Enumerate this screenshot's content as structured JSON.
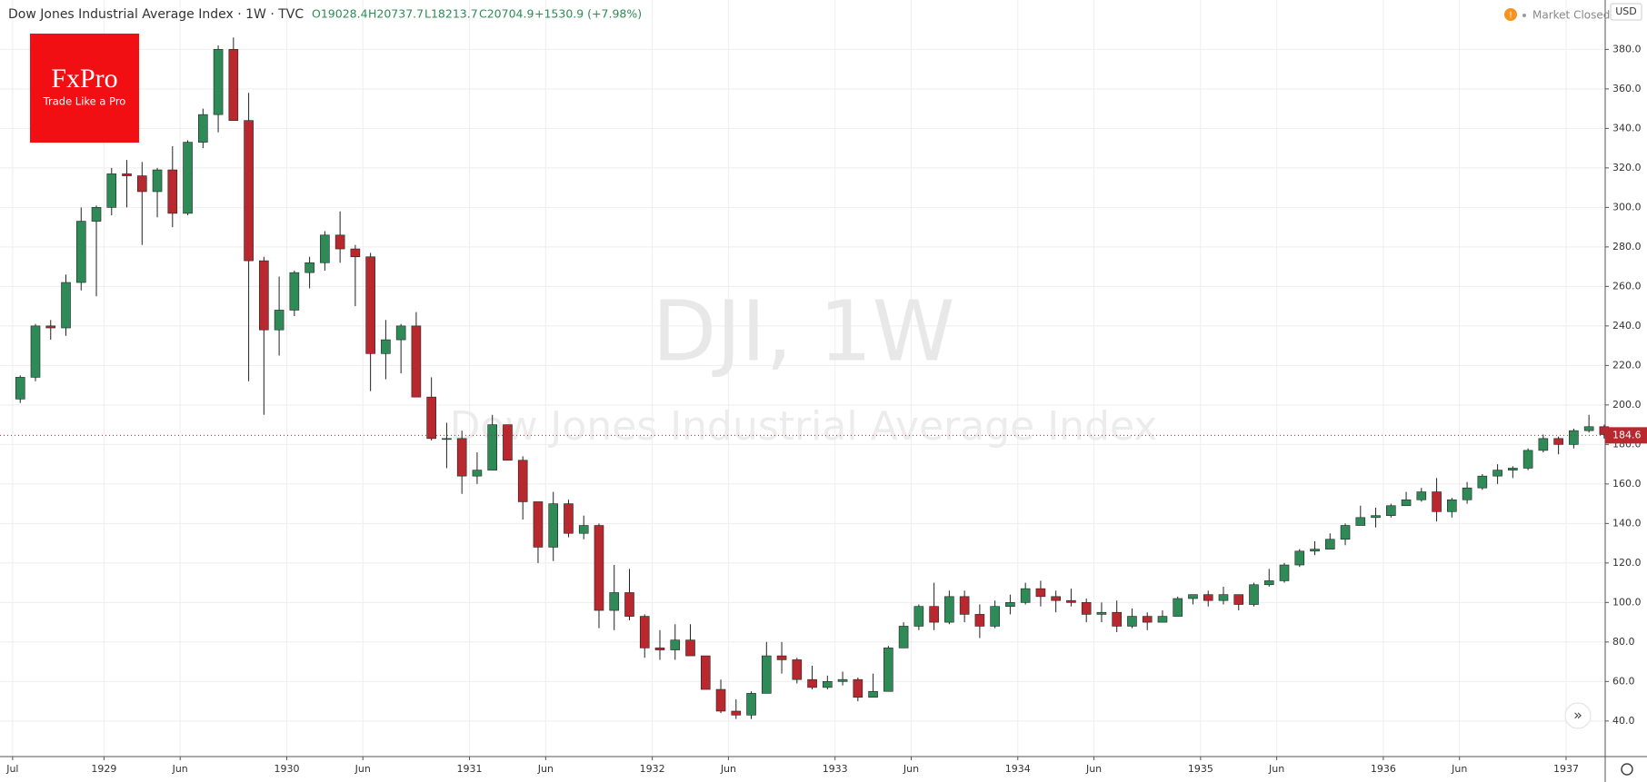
{
  "header": {
    "title": "Dow Jones Industrial Average Index · 1W · TVC",
    "open": "O19028.4",
    "high": "H20737.7",
    "low": "L18213.7",
    "close": "C20704.9",
    "change": "+1530.9 (+7.98%)",
    "status": "Market Closed",
    "currency": "USD"
  },
  "logo": {
    "name": "FxPro",
    "tagline": "Trade Like a Pro"
  },
  "watermark": {
    "symbol": "DJI, 1W",
    "description": "Dow Jones Industrial Average Index"
  },
  "chart_data": {
    "type": "candlestick",
    "up_color": "#2e8b57",
    "down_color": "#b8282e",
    "grid": true,
    "last_price": 184.6,
    "ylim": [
      22,
      405
    ],
    "yticks": [
      {
        "value": 40,
        "label": "40.0"
      },
      {
        "value": 60,
        "label": "60.0"
      },
      {
        "value": 80,
        "label": "80.0"
      },
      {
        "value": 100,
        "label": "100.0"
      },
      {
        "value": 120,
        "label": "120.0"
      },
      {
        "value": 140,
        "label": "140.0"
      },
      {
        "value": 160,
        "label": "160.0"
      },
      {
        "value": 180,
        "label": "180.0"
      },
      {
        "value": 200,
        "label": "200.0"
      },
      {
        "value": 220,
        "label": "220.0"
      },
      {
        "value": 240,
        "label": "240.0"
      },
      {
        "value": 260,
        "label": "260.0"
      },
      {
        "value": 280,
        "label": "280.0"
      },
      {
        "value": 300,
        "label": "300.0"
      },
      {
        "value": 320,
        "label": "320.0"
      },
      {
        "value": 340,
        "label": "340.0"
      },
      {
        "value": 360,
        "label": "360.0"
      },
      {
        "value": 380,
        "label": "380.0"
      }
    ],
    "xticks": [
      {
        "value": "1928-07",
        "label": "Jul"
      },
      {
        "value": "1929-01",
        "label": "1929"
      },
      {
        "value": "1929-06",
        "label": "Jun"
      },
      {
        "value": "1930-01",
        "label": "1930"
      },
      {
        "value": "1930-06",
        "label": "Jun"
      },
      {
        "value": "1931-01",
        "label": "1931"
      },
      {
        "value": "1931-06",
        "label": "Jun"
      },
      {
        "value": "1932-01",
        "label": "1932"
      },
      {
        "value": "1932-06",
        "label": "Jun"
      },
      {
        "value": "1933-01",
        "label": "1933"
      },
      {
        "value": "1933-06",
        "label": "Jun"
      },
      {
        "value": "1934-01",
        "label": "1934"
      },
      {
        "value": "1934-06",
        "label": "Jun"
      },
      {
        "value": "1935-01",
        "label": "1935"
      },
      {
        "value": "1935-06",
        "label": "Jun"
      },
      {
        "value": "1936-01",
        "label": "1936"
      },
      {
        "value": "1936-06",
        "label": "Jun"
      },
      {
        "value": "1937-01",
        "label": "1937"
      }
    ],
    "x": [
      "1928-07",
      "1928-08",
      "1928-09",
      "1928-10",
      "1928-11",
      "1928-12",
      "1929-01",
      "1929-02",
      "1929-03",
      "1929-04",
      "1929-05",
      "1929-06",
      "1929-07",
      "1929-08",
      "1929-09",
      "1929-10",
      "1929-11",
      "1929-12",
      "1930-01",
      "1930-02",
      "1930-03",
      "1930-04",
      "1930-05",
      "1930-06",
      "1930-07",
      "1930-08",
      "1930-09",
      "1930-10",
      "1930-11",
      "1930-12",
      "1931-01",
      "1931-02",
      "1931-03",
      "1931-04",
      "1931-05",
      "1931-06",
      "1931-07",
      "1931-08",
      "1931-09",
      "1931-10",
      "1931-11",
      "1931-12",
      "1932-01",
      "1932-02",
      "1932-03",
      "1932-04",
      "1932-05",
      "1932-06",
      "1932-07",
      "1932-08",
      "1932-09",
      "1932-10",
      "1932-11",
      "1932-12",
      "1933-01",
      "1933-02",
      "1933-03",
      "1933-04",
      "1933-05",
      "1933-06",
      "1933-07",
      "1933-08",
      "1933-09",
      "1933-10",
      "1933-11",
      "1933-12",
      "1934-01",
      "1934-02",
      "1934-03",
      "1934-04",
      "1934-05",
      "1934-06",
      "1934-07",
      "1934-08",
      "1934-09",
      "1934-10",
      "1934-11",
      "1934-12",
      "1935-01",
      "1935-02",
      "1935-03",
      "1935-04",
      "1935-05",
      "1935-06",
      "1935-07",
      "1935-08",
      "1935-09",
      "1935-10",
      "1935-11",
      "1935-12",
      "1936-01",
      "1936-02",
      "1936-03",
      "1936-04",
      "1936-05",
      "1936-06",
      "1936-07",
      "1936-08",
      "1936-09",
      "1936-10",
      "1936-11",
      "1936-12",
      "1937-01",
      "1937-02",
      "1937-03"
    ],
    "open": [
      203,
      214,
      240,
      239,
      262,
      293,
      300,
      317,
      316,
      308,
      319,
      297,
      333,
      347,
      380,
      344,
      273,
      238,
      248,
      267,
      272,
      286,
      279,
      275,
      226,
      233,
      240,
      204,
      183,
      183,
      164,
      167,
      190,
      172,
      151,
      128,
      150,
      135,
      139,
      96,
      105,
      93,
      77,
      76,
      81,
      73,
      56,
      45,
      43,
      54,
      73,
      71,
      61,
      57,
      60,
      61,
      52,
      55,
      77,
      88,
      98,
      90,
      103,
      94,
      88,
      98,
      100,
      107,
      103,
      101,
      100,
      94,
      95,
      88,
      93,
      90,
      93,
      102,
      104,
      101,
      104,
      99,
      109,
      111,
      119,
      126,
      127,
      132,
      139,
      143,
      144,
      149,
      152,
      156,
      146,
      152,
      158,
      164,
      167,
      168,
      177,
      183,
      180,
      187,
      189
    ],
    "high": [
      215,
      241,
      243,
      266,
      300,
      301,
      320,
      324,
      323,
      320,
      331,
      334,
      350,
      382,
      386,
      358,
      275,
      265,
      268,
      275,
      288,
      298,
      281,
      277,
      243,
      241,
      247,
      214,
      191,
      187,
      176,
      195,
      190,
      174,
      151,
      156,
      152,
      144,
      140,
      119,
      117,
      94,
      86,
      89,
      89,
      73,
      61,
      51,
      55,
      80,
      80,
      72,
      68,
      63,
      65,
      62,
      64,
      78,
      90,
      99,
      110,
      106,
      106,
      99,
      101,
      104,
      110,
      111,
      106,
      107,
      102,
      100,
      101,
      97,
      95,
      96,
      103,
      104,
      106,
      108,
      104,
      110,
      117,
      120,
      127,
      131,
      135,
      140,
      149,
      148,
      150,
      156,
      158,
      163,
      153,
      161,
      165,
      170,
      169,
      178,
      185,
      184,
      188,
      195,
      190
    ],
    "low": [
      201,
      212,
      233,
      235,
      258,
      255,
      296,
      300,
      281,
      295,
      290,
      296,
      330,
      338,
      344,
      212,
      195,
      225,
      245,
      259,
      268,
      272,
      250,
      207,
      213,
      216,
      204,
      182,
      168,
      155,
      160,
      167,
      172,
      142,
      120,
      121,
      133,
      132,
      87,
      86,
      91,
      72,
      71,
      71,
      73,
      56,
      44,
      41,
      41,
      54,
      64,
      59,
      56,
      56,
      58,
      50,
      52,
      55,
      77,
      86,
      86,
      89,
      90,
      82,
      87,
      94,
      99,
      98,
      95,
      98,
      90,
      90,
      85,
      87,
      86,
      90,
      93,
      99,
      98,
      99,
      96,
      98,
      108,
      110,
      118,
      124,
      127,
      129,
      139,
      138,
      143,
      149,
      151,
      141,
      143,
      150,
      157,
      160,
      163,
      167,
      176,
      175,
      178,
      186,
      183
    ],
    "close": [
      214,
      240,
      239,
      262,
      293,
      300,
      317,
      316,
      308,
      319,
      297,
      333,
      347,
      380,
      344,
      273,
      238,
      248,
      267,
      272,
      286,
      279,
      275,
      226,
      233,
      240,
      204,
      183,
      183,
      164,
      167,
      190,
      172,
      151,
      128,
      150,
      135,
      139,
      96,
      105,
      93,
      77,
      76,
      81,
      73,
      56,
      45,
      43,
      54,
      73,
      71,
      61,
      57,
      60,
      61,
      52,
      55,
      77,
      88,
      98,
      90,
      103,
      94,
      88,
      98,
      100,
      107,
      103,
      101,
      100,
      94,
      95,
      88,
      93,
      90,
      93,
      102,
      104,
      101,
      104,
      99,
      109,
      111,
      119,
      126,
      127,
      132,
      139,
      143,
      144,
      149,
      152,
      156,
      146,
      152,
      158,
      164,
      167,
      168,
      177,
      183,
      180,
      187,
      189,
      185
    ]
  }
}
